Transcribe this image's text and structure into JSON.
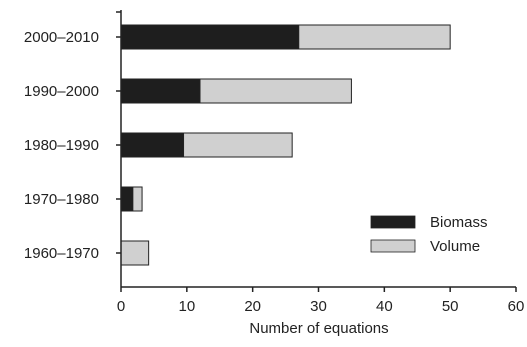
{
  "chart_data": {
    "type": "bar",
    "orientation": "horizontal",
    "stacked": true,
    "title": "",
    "xlabel": "Number of equations",
    "ylabel": "",
    "xlim": [
      0,
      60
    ],
    "x_ticks": [
      "0",
      "10",
      "20",
      "30",
      "40",
      "50",
      "60"
    ],
    "grid": false,
    "legend_position": "bottom-right",
    "categories": [
      "2000–2010",
      "1990–2000",
      "1980–1990",
      "1970–1980",
      "1960–1970"
    ],
    "series": [
      {
        "name": "Biomass",
        "color": "#1e1e1e",
        "values": [
          27,
          12,
          9.5,
          1.8,
          0
        ]
      },
      {
        "name": "Volume",
        "color": "#d0d0d0",
        "values": [
          23,
          23,
          16.5,
          1.4,
          4.2
        ]
      }
    ]
  }
}
